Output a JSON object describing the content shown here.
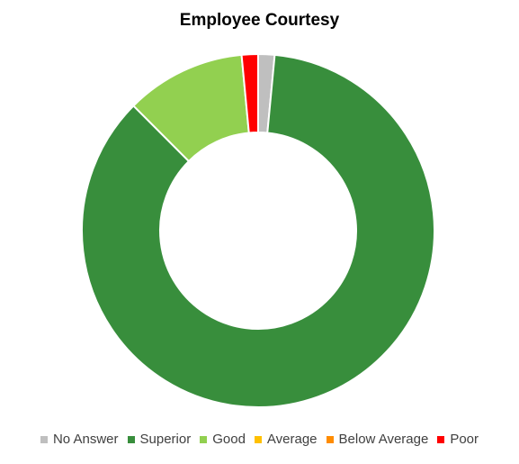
{
  "chart_data": {
    "type": "pie",
    "subtype": "donut",
    "title": "Employee Courtesy",
    "categories": [
      "No Answer",
      "Superior",
      "Good",
      "Average",
      "Below Average",
      "Poor"
    ],
    "values": [
      1.5,
      86.0,
      11.0,
      0,
      0,
      1.5
    ],
    "colors": [
      "#bfbfbf",
      "#388e3c",
      "#92d050",
      "#ffc000",
      "#ff8c00",
      "#ff0000"
    ],
    "legend_position": "bottom"
  }
}
